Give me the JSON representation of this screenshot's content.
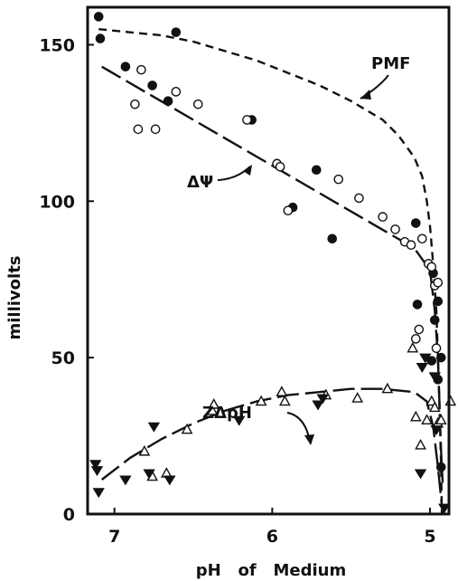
{
  "chart_data": {
    "type": "scatter",
    "title": "",
    "xlabel": "pH   of   Medium",
    "ylabel": "millivolts",
    "xlim": [
      7.17,
      4.88
    ],
    "ylim": [
      0,
      162
    ],
    "x_ticks": [
      "7",
      "6",
      "5"
    ],
    "x_tick_values": [
      7,
      6,
      5
    ],
    "y_ticks": [
      "0",
      "50",
      "100",
      "150"
    ],
    "y_tick_values": [
      0,
      50,
      100,
      150
    ],
    "grid": false,
    "annotations": [
      "PMF",
      "ΔΨ",
      "ZΔpH"
    ],
    "series": [
      {
        "kind": "points",
        "marker": "filled-circle",
        "points": [
          [
            7.1,
            159
          ],
          [
            7.09,
            152
          ],
          [
            6.93,
            143
          ],
          [
            6.76,
            137
          ],
          [
            6.66,
            132
          ],
          [
            6.61,
            154
          ],
          [
            6.13,
            126
          ],
          [
            5.72,
            110
          ],
          [
            5.87,
            98
          ],
          [
            5.62,
            88
          ],
          [
            5.09,
            93
          ],
          [
            4.98,
            77
          ],
          [
            5.08,
            67
          ],
          [
            4.97,
            62
          ],
          [
            4.99,
            49
          ],
          [
            4.95,
            68
          ],
          [
            4.93,
            50
          ],
          [
            4.95,
            43
          ],
          [
            4.93,
            15
          ]
        ]
      },
      {
        "kind": "points",
        "marker": "open-circle",
        "points": [
          [
            6.87,
            131
          ],
          [
            6.85,
            123
          ],
          [
            6.83,
            142
          ],
          [
            6.74,
            123
          ],
          [
            6.61,
            135
          ],
          [
            6.47,
            131
          ],
          [
            6.16,
            126
          ],
          [
            5.97,
            112
          ],
          [
            5.95,
            111
          ],
          [
            5.9,
            97
          ],
          [
            5.58,
            107
          ],
          [
            5.45,
            101
          ],
          [
            5.3,
            95
          ],
          [
            5.22,
            91
          ],
          [
            5.16,
            87
          ],
          [
            5.12,
            86
          ],
          [
            5.05,
            88
          ],
          [
            5.01,
            80
          ],
          [
            4.99,
            79
          ],
          [
            4.97,
            73
          ],
          [
            4.95,
            74
          ],
          [
            5.07,
            59
          ],
          [
            5.09,
            56
          ],
          [
            4.96,
            53
          ]
        ]
      },
      {
        "kind": "points",
        "marker": "open-triangle",
        "points": [
          [
            6.81,
            20
          ],
          [
            6.76,
            12
          ],
          [
            6.67,
            13
          ],
          [
            6.54,
            27
          ],
          [
            6.38,
            33
          ],
          [
            6.37,
            35
          ],
          [
            6.07,
            36
          ],
          [
            5.94,
            39
          ],
          [
            5.92,
            36
          ],
          [
            5.66,
            38
          ],
          [
            5.46,
            37
          ],
          [
            5.27,
            40
          ],
          [
            5.11,
            53
          ],
          [
            5.09,
            31
          ],
          [
            5.06,
            22
          ],
          [
            5.02,
            30
          ],
          [
            4.99,
            36
          ],
          [
            4.97,
            34
          ],
          [
            4.95,
            29
          ],
          [
            4.93,
            30
          ],
          [
            4.87,
            36
          ]
        ]
      },
      {
        "kind": "points",
        "marker": "filled-triangle-down",
        "points": [
          [
            7.12,
            16
          ],
          [
            7.11,
            14
          ],
          [
            7.1,
            7
          ],
          [
            6.93,
            11
          ],
          [
            6.78,
            13
          ],
          [
            6.75,
            28
          ],
          [
            6.65,
            11
          ],
          [
            6.21,
            30
          ],
          [
            5.71,
            35
          ],
          [
            5.68,
            37
          ],
          [
            5.05,
            47
          ],
          [
            5.06,
            13
          ],
          [
            5.03,
            50
          ],
          [
            4.97,
            44
          ],
          [
            4.96,
            27
          ],
          [
            4.91,
            2
          ]
        ]
      },
      {
        "kind": "curve",
        "name": "PMF",
        "style": "dashed",
        "points": [
          [
            7.1,
            155
          ],
          [
            6.9,
            154
          ],
          [
            6.7,
            153
          ],
          [
            6.5,
            151
          ],
          [
            6.3,
            148
          ],
          [
            6.1,
            145
          ],
          [
            5.9,
            141
          ],
          [
            5.7,
            137
          ],
          [
            5.5,
            132
          ],
          [
            5.3,
            126
          ],
          [
            5.2,
            121
          ],
          [
            5.1,
            114
          ],
          [
            5.05,
            108
          ],
          [
            5.02,
            100
          ],
          [
            5.0,
            92
          ],
          [
            4.98,
            80
          ],
          [
            4.96,
            65
          ],
          [
            4.95,
            50
          ],
          [
            4.94,
            35
          ],
          [
            4.93,
            15
          ],
          [
            4.925,
            0
          ]
        ]
      },
      {
        "kind": "curve",
        "name": "ΔΨ",
        "style": "long-dash",
        "points": [
          [
            7.08,
            143
          ],
          [
            5.1,
            85
          ],
          [
            5.0,
            78
          ],
          [
            4.97,
            65
          ],
          [
            4.95,
            50
          ],
          [
            4.94,
            35
          ],
          [
            4.93,
            20
          ],
          [
            4.92,
            10
          ]
        ]
      },
      {
        "kind": "curve",
        "name": "ZΔpH",
        "style": "long-dash",
        "points": [
          [
            7.08,
            11
          ],
          [
            6.9,
            18
          ],
          [
            6.7,
            24
          ],
          [
            6.5,
            29
          ],
          [
            6.3,
            33
          ],
          [
            6.1,
            36
          ],
          [
            5.9,
            38
          ],
          [
            5.7,
            39
          ],
          [
            5.5,
            40
          ],
          [
            5.3,
            40
          ],
          [
            5.1,
            39
          ],
          [
            5.02,
            36
          ],
          [
            4.98,
            28
          ],
          [
            4.95,
            15
          ],
          [
            4.93,
            5
          ],
          [
            4.92,
            0
          ]
        ]
      }
    ]
  }
}
